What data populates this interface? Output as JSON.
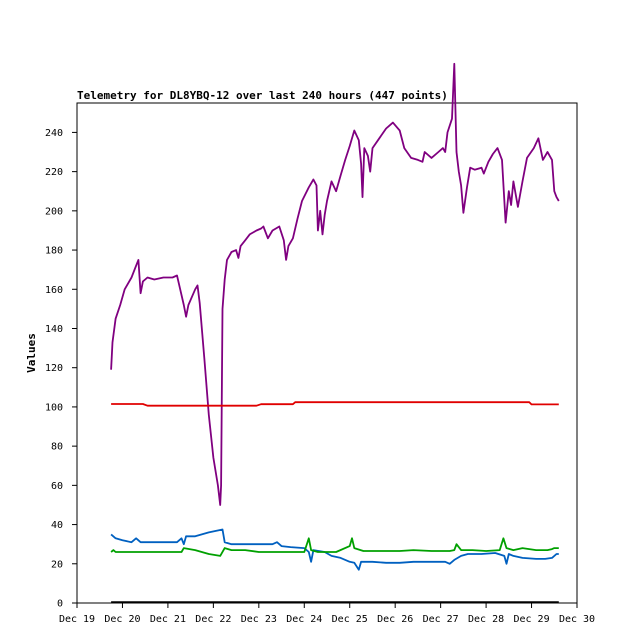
{
  "chart_data": {
    "type": "line",
    "title": "Telemetry for DL8YBQ-12 over last 240 hours (447 points)",
    "xlabel": "",
    "ylabel": "Values",
    "x_ticks": [
      "Dec 19",
      "Dec 20",
      "Dec 21",
      "Dec 22",
      "Dec 23",
      "Dec 24",
      "Dec 25",
      "Dec 26",
      "Dec 27",
      "Dec 28",
      "Dec 29",
      "Dec 30"
    ],
    "y_ticks": [
      0,
      20,
      40,
      60,
      80,
      100,
      120,
      140,
      160,
      180,
      200,
      220,
      240
    ],
    "xlim": [
      0,
      11
    ],
    "ylim": [
      0,
      255
    ],
    "grid": false,
    "series": [
      {
        "color": "#800080",
        "points": [
          [
            0.75,
            119
          ],
          [
            0.78,
            133
          ],
          [
            0.85,
            145
          ],
          [
            0.95,
            152
          ],
          [
            1.05,
            160
          ],
          [
            1.2,
            166
          ],
          [
            1.3,
            172
          ],
          [
            1.35,
            175
          ],
          [
            1.4,
            158
          ],
          [
            1.45,
            164
          ],
          [
            1.55,
            166
          ],
          [
            1.7,
            165
          ],
          [
            1.9,
            166
          ],
          [
            2.1,
            166
          ],
          [
            2.2,
            167
          ],
          [
            2.25,
            162
          ],
          [
            2.35,
            152
          ],
          [
            2.4,
            146
          ],
          [
            2.45,
            152
          ],
          [
            2.6,
            160
          ],
          [
            2.65,
            162
          ],
          [
            2.7,
            153
          ],
          [
            2.8,
            125
          ],
          [
            2.9,
            96
          ],
          [
            3.0,
            74
          ],
          [
            3.1,
            60
          ],
          [
            3.15,
            50
          ],
          [
            3.17,
            60
          ],
          [
            3.2,
            150
          ],
          [
            3.25,
            165
          ],
          [
            3.3,
            175
          ],
          [
            3.4,
            179
          ],
          [
            3.5,
            180
          ],
          [
            3.55,
            176
          ],
          [
            3.6,
            182
          ],
          [
            3.7,
            185
          ],
          [
            3.8,
            188
          ],
          [
            3.95,
            190
          ],
          [
            4.05,
            191
          ],
          [
            4.1,
            192
          ],
          [
            4.2,
            186
          ],
          [
            4.3,
            190
          ],
          [
            4.45,
            192
          ],
          [
            4.55,
            185
          ],
          [
            4.6,
            175
          ],
          [
            4.65,
            182
          ],
          [
            4.75,
            186
          ],
          [
            4.85,
            196
          ],
          [
            4.95,
            205
          ],
          [
            5.1,
            212
          ],
          [
            5.2,
            216
          ],
          [
            5.27,
            213
          ],
          [
            5.3,
            190
          ],
          [
            5.35,
            200
          ],
          [
            5.4,
            188
          ],
          [
            5.45,
            198
          ],
          [
            5.5,
            205
          ],
          [
            5.6,
            215
          ],
          [
            5.7,
            210
          ],
          [
            5.8,
            218
          ],
          [
            5.9,
            226
          ],
          [
            6.0,
            233
          ],
          [
            6.1,
            241
          ],
          [
            6.2,
            236
          ],
          [
            6.25,
            224
          ],
          [
            6.28,
            207
          ],
          [
            6.32,
            232
          ],
          [
            6.4,
            228
          ],
          [
            6.45,
            220
          ],
          [
            6.5,
            232
          ],
          [
            6.65,
            237
          ],
          [
            6.8,
            242
          ],
          [
            6.95,
            245
          ],
          [
            7.1,
            241
          ],
          [
            7.2,
            232
          ],
          [
            7.35,
            227
          ],
          [
            7.5,
            226
          ],
          [
            7.6,
            225
          ],
          [
            7.65,
            230
          ],
          [
            7.8,
            227
          ],
          [
            7.95,
            230
          ],
          [
            8.05,
            232
          ],
          [
            8.1,
            230
          ],
          [
            8.15,
            240
          ],
          [
            8.25,
            247
          ],
          [
            8.3,
            275
          ],
          [
            8.35,
            230
          ],
          [
            8.4,
            220
          ],
          [
            8.45,
            213
          ],
          [
            8.5,
            199
          ],
          [
            8.58,
            212
          ],
          [
            8.65,
            222
          ],
          [
            8.75,
            221
          ],
          [
            8.9,
            222
          ],
          [
            8.95,
            219
          ],
          [
            9.05,
            225
          ],
          [
            9.15,
            229
          ],
          [
            9.25,
            232
          ],
          [
            9.35,
            226
          ],
          [
            9.43,
            194
          ],
          [
            9.5,
            210
          ],
          [
            9.55,
            203
          ],
          [
            9.6,
            215
          ],
          [
            9.7,
            202
          ],
          [
            9.8,
            215
          ],
          [
            9.9,
            227
          ],
          [
            10.05,
            232
          ],
          [
            10.15,
            237
          ],
          [
            10.25,
            226
          ],
          [
            10.35,
            230
          ],
          [
            10.45,
            226
          ],
          [
            10.5,
            210
          ],
          [
            10.55,
            207
          ],
          [
            10.6,
            205
          ]
        ]
      },
      {
        "color": "#e00000",
        "points": [
          [
            0.75,
            101.5
          ],
          [
            1.45,
            101.5
          ],
          [
            1.55,
            100.6
          ],
          [
            3.95,
            100.6
          ],
          [
            4.05,
            101.4
          ],
          [
            4.75,
            101.4
          ],
          [
            4.8,
            102.4
          ],
          [
            9.95,
            102.4
          ],
          [
            10.0,
            101.3
          ],
          [
            10.6,
            101.3
          ]
        ]
      },
      {
        "color": "#0060c0",
        "points": [
          [
            0.75,
            35
          ],
          [
            0.85,
            33
          ],
          [
            1.0,
            32
          ],
          [
            1.2,
            31
          ],
          [
            1.3,
            33
          ],
          [
            1.4,
            31
          ],
          [
            1.6,
            31
          ],
          [
            1.9,
            31
          ],
          [
            2.2,
            31
          ],
          [
            2.3,
            33
          ],
          [
            2.35,
            30
          ],
          [
            2.4,
            34
          ],
          [
            2.6,
            34
          ],
          [
            2.9,
            36
          ],
          [
            3.2,
            37.5
          ],
          [
            3.25,
            31
          ],
          [
            3.4,
            30
          ],
          [
            3.6,
            30
          ],
          [
            3.9,
            30
          ],
          [
            4.3,
            30
          ],
          [
            4.4,
            31
          ],
          [
            4.5,
            29
          ],
          [
            4.7,
            28.5
          ],
          [
            5.0,
            28
          ],
          [
            5.1,
            26
          ],
          [
            5.15,
            21
          ],
          [
            5.2,
            27
          ],
          [
            5.45,
            26
          ],
          [
            5.6,
            24
          ],
          [
            5.8,
            23
          ],
          [
            6.0,
            21
          ],
          [
            6.1,
            20.5
          ],
          [
            6.2,
            17
          ],
          [
            6.25,
            21
          ],
          [
            6.5,
            21
          ],
          [
            6.8,
            20.5
          ],
          [
            7.1,
            20.5
          ],
          [
            7.4,
            21
          ],
          [
            7.8,
            21
          ],
          [
            8.1,
            21
          ],
          [
            8.2,
            20
          ],
          [
            8.3,
            22
          ],
          [
            8.45,
            24
          ],
          [
            8.6,
            25
          ],
          [
            8.9,
            25
          ],
          [
            9.2,
            25.5
          ],
          [
            9.4,
            24
          ],
          [
            9.45,
            20
          ],
          [
            9.5,
            25
          ],
          [
            9.6,
            24
          ],
          [
            9.8,
            23
          ],
          [
            10.1,
            22.5
          ],
          [
            10.3,
            22.5
          ],
          [
            10.45,
            23
          ],
          [
            10.55,
            25
          ],
          [
            10.6,
            25
          ]
        ]
      },
      {
        "color": "#00a000",
        "points": [
          [
            0.75,
            26
          ],
          [
            0.8,
            27
          ],
          [
            0.85,
            26
          ],
          [
            1.4,
            26
          ],
          [
            1.8,
            26
          ],
          [
            2.2,
            26
          ],
          [
            2.3,
            26
          ],
          [
            2.35,
            28
          ],
          [
            2.6,
            27
          ],
          [
            2.9,
            25
          ],
          [
            3.15,
            24
          ],
          [
            3.25,
            28
          ],
          [
            3.4,
            27
          ],
          [
            3.7,
            27
          ],
          [
            4.0,
            26
          ],
          [
            4.3,
            26
          ],
          [
            4.7,
            26
          ],
          [
            5.0,
            26
          ],
          [
            5.1,
            33
          ],
          [
            5.15,
            27
          ],
          [
            5.3,
            26
          ],
          [
            5.7,
            26
          ],
          [
            6.0,
            29
          ],
          [
            6.05,
            33
          ],
          [
            6.1,
            28
          ],
          [
            6.3,
            26.5
          ],
          [
            6.7,
            26.5
          ],
          [
            7.1,
            26.5
          ],
          [
            7.4,
            27
          ],
          [
            7.8,
            26.5
          ],
          [
            8.2,
            26.5
          ],
          [
            8.3,
            27
          ],
          [
            8.35,
            30
          ],
          [
            8.45,
            27
          ],
          [
            8.7,
            27
          ],
          [
            9.0,
            26.5
          ],
          [
            9.3,
            27
          ],
          [
            9.38,
            33
          ],
          [
            9.45,
            28
          ],
          [
            9.6,
            27
          ],
          [
            9.8,
            28
          ],
          [
            10.1,
            27
          ],
          [
            10.35,
            27
          ],
          [
            10.45,
            27.5
          ],
          [
            10.5,
            28
          ],
          [
            10.6,
            28
          ]
        ]
      },
      {
        "color": "#000000",
        "points": [
          [
            0.75,
            0.4
          ],
          [
            10.6,
            0.4
          ]
        ]
      }
    ]
  }
}
